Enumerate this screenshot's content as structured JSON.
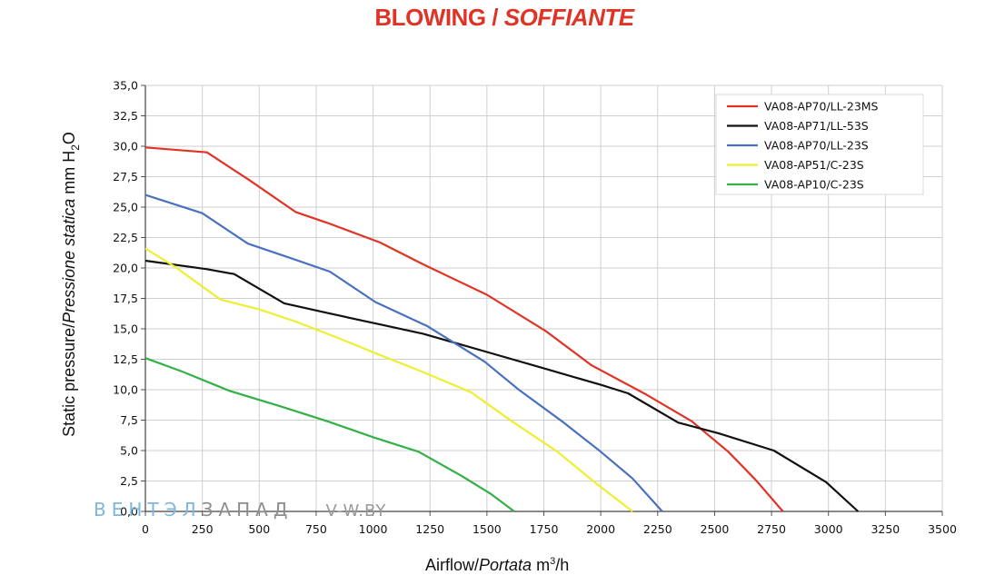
{
  "title": {
    "main": "BLOWING / ",
    "italic": "SOFFIANTE"
  },
  "axes": {
    "ylabel_pre": "Static pressure/",
    "ylabel_italic": "Pressione statica",
    "ylabel_unit_pre": " mm H",
    "ylabel_unit_sub": "2",
    "ylabel_unit_post": "O",
    "xlabel_pre": "Airflow/",
    "xlabel_italic": "Portata",
    "xlabel_unit_pre": " m",
    "xlabel_unit_sup": "3",
    "xlabel_unit_post": "/h"
  },
  "watermark": {
    "part1": "ВЕНТЭЛ",
    "part2": "ЗАПАД",
    "part3": "V-W.BY"
  },
  "chart_data": {
    "type": "line",
    "xlim": [
      0,
      3500
    ],
    "ylim": [
      0,
      35
    ],
    "grid": true,
    "legend_position": "top-right",
    "x_ticks": [
      "0",
      "250",
      "500",
      "750",
      "1000",
      "1250",
      "1500",
      "1750",
      "2000",
      "2250",
      "2500",
      "2750",
      "3000",
      "3250",
      "3500"
    ],
    "y_ticks": [
      "0,0",
      "2,5",
      "5,0",
      "7,5",
      "10,0",
      "12,5",
      "15,0",
      "17,5",
      "20,0",
      "22,5",
      "25,0",
      "27,5",
      "30,0",
      "32,5",
      "35,0"
    ],
    "series": [
      {
        "name": "VA08-AP70/LL-23MS",
        "color": "#e03326",
        "points": [
          [
            0,
            29.9
          ],
          [
            270,
            29.5
          ],
          [
            450,
            27.3
          ],
          [
            660,
            24.6
          ],
          [
            800,
            23.7
          ],
          [
            1030,
            22.1
          ],
          [
            1220,
            20.3
          ],
          [
            1500,
            17.8
          ],
          [
            1760,
            14.8
          ],
          [
            1960,
            12.0
          ],
          [
            2200,
            9.6
          ],
          [
            2400,
            7.4
          ],
          [
            2560,
            4.9
          ],
          [
            2680,
            2.6
          ],
          [
            2800,
            0
          ]
        ]
      },
      {
        "name": "VA08-AP71/LL-53S",
        "color": "#111111",
        "points": [
          [
            0,
            20.6
          ],
          [
            270,
            19.9
          ],
          [
            390,
            19.5
          ],
          [
            610,
            17.1
          ],
          [
            800,
            16.3
          ],
          [
            1020,
            15.4
          ],
          [
            1220,
            14.6
          ],
          [
            1500,
            13.1
          ],
          [
            1760,
            11.7
          ],
          [
            2000,
            10.4
          ],
          [
            2120,
            9.7
          ],
          [
            2340,
            7.3
          ],
          [
            2520,
            6.4
          ],
          [
            2760,
            5.0
          ],
          [
            2990,
            2.4
          ],
          [
            3130,
            0
          ]
        ]
      },
      {
        "name": "VA08-AP70/LL-23S",
        "color": "#4a70c0",
        "points": [
          [
            0,
            26.0
          ],
          [
            250,
            24.5
          ],
          [
            450,
            22.0
          ],
          [
            640,
            20.8
          ],
          [
            810,
            19.7
          ],
          [
            1010,
            17.2
          ],
          [
            1240,
            15.2
          ],
          [
            1490,
            12.3
          ],
          [
            1640,
            10.0
          ],
          [
            1830,
            7.4
          ],
          [
            2000,
            4.9
          ],
          [
            2140,
            2.7
          ],
          [
            2270,
            0
          ]
        ]
      },
      {
        "name": "VA08-AP51/C-23S",
        "color": "#eeee33",
        "points": [
          [
            0,
            21.6
          ],
          [
            130,
            20.1
          ],
          [
            330,
            17.4
          ],
          [
            500,
            16.6
          ],
          [
            660,
            15.6
          ],
          [
            840,
            14.3
          ],
          [
            1010,
            13.0
          ],
          [
            1200,
            11.6
          ],
          [
            1430,
            9.8
          ],
          [
            1610,
            7.4
          ],
          [
            1810,
            4.9
          ],
          [
            1980,
            2.3
          ],
          [
            2140,
            0
          ]
        ]
      },
      {
        "name": "VA08-AP10/C-23S",
        "color": "#33b046",
        "points": [
          [
            0,
            12.6
          ],
          [
            160,
            11.5
          ],
          [
            370,
            9.9
          ],
          [
            600,
            8.6
          ],
          [
            800,
            7.4
          ],
          [
            1000,
            6.1
          ],
          [
            1200,
            4.9
          ],
          [
            1390,
            2.9
          ],
          [
            1520,
            1.4
          ],
          [
            1620,
            0
          ]
        ]
      }
    ]
  }
}
